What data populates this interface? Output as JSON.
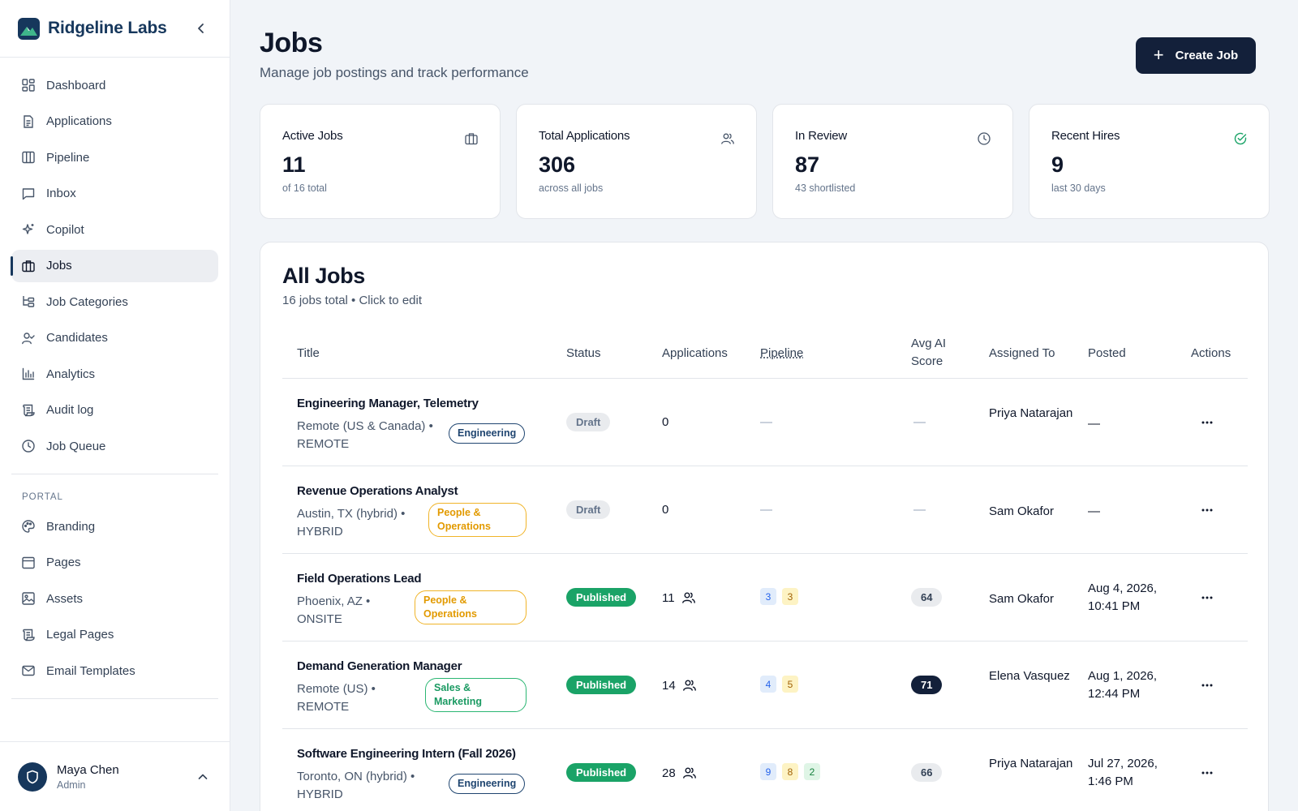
{
  "brand": {
    "name": "Ridgeline Labs"
  },
  "sidebar": {
    "items": [
      {
        "label": "Dashboard",
        "icon": "dashboard-icon"
      },
      {
        "label": "Applications",
        "icon": "document-icon"
      },
      {
        "label": "Pipeline",
        "icon": "columns-icon"
      },
      {
        "label": "Inbox",
        "icon": "message-icon"
      },
      {
        "label": "Copilot",
        "icon": "sparkle-icon"
      },
      {
        "label": "Jobs",
        "icon": "briefcase-icon",
        "active": true
      },
      {
        "label": "Job Categories",
        "icon": "hierarchy-icon"
      },
      {
        "label": "Candidates",
        "icon": "user-check-icon"
      },
      {
        "label": "Analytics",
        "icon": "bar-chart-icon"
      },
      {
        "label": "Audit log",
        "icon": "scroll-icon"
      },
      {
        "label": "Job Queue",
        "icon": "clock-icon"
      }
    ],
    "portal_label": "PORTAL",
    "portal_items": [
      {
        "label": "Branding",
        "icon": "palette-icon"
      },
      {
        "label": "Pages",
        "icon": "page-icon"
      },
      {
        "label": "Assets",
        "icon": "image-icon"
      },
      {
        "label": "Legal Pages",
        "icon": "scroll-icon"
      },
      {
        "label": "Email Templates",
        "icon": "mail-icon"
      }
    ]
  },
  "user": {
    "name": "Maya Chen",
    "role": "Admin"
  },
  "header": {
    "title": "Jobs",
    "subtitle": "Manage job postings and track performance",
    "create_label": "Create Job"
  },
  "stats": [
    {
      "label": "Active Jobs",
      "value": "11",
      "sub": "of 16 total",
      "icon": "briefcase-icon"
    },
    {
      "label": "Total Applications",
      "value": "306",
      "sub": "across all jobs",
      "icon": "users-icon"
    },
    {
      "label": "In Review",
      "value": "87",
      "sub": "43 shortlisted",
      "icon": "clock-icon"
    },
    {
      "label": "Recent Hires",
      "value": "9",
      "sub": "last 30 days",
      "icon": "check-circle-icon"
    }
  ],
  "jobs": {
    "title": "All Jobs",
    "subtitle": "16 jobs total • Click to edit",
    "columns": {
      "title": "Title",
      "status": "Status",
      "applications": "Applications",
      "pipeline": "Pipeline",
      "avg_ai_line1": "Avg AI",
      "avg_ai_line2": "Score",
      "assigned": "Assigned To",
      "posted": "Posted",
      "actions": "Actions"
    },
    "rows": [
      {
        "title": "Engineering Manager, Telemetry",
        "location": "Remote (US & Canada) •",
        "work_type": "REMOTE",
        "category": "Engineering",
        "status": "Draft",
        "applications": "0",
        "pipeline": "—",
        "score": "—",
        "assigned": "Priya Natarajan",
        "posted": "—"
      },
      {
        "title": "Revenue Operations Analyst",
        "location": "Austin, TX (hybrid) •",
        "work_type": "HYBRID",
        "category": "People & Operations",
        "status": "Draft",
        "applications": "0",
        "pipeline": "—",
        "score": "—",
        "assigned": "Sam Okafor",
        "posted": "—"
      },
      {
        "title": "Field Operations Lead",
        "location": "Phoenix, AZ •",
        "work_type": "ONSITE",
        "category": "People & Operations",
        "status": "Published",
        "applications": "11",
        "pipeline_counts": [
          "3",
          "3"
        ],
        "score": "64",
        "assigned": "Sam Okafor",
        "posted": "Aug 4, 2026, 10:41 PM"
      },
      {
        "title": "Demand Generation Manager",
        "location": "Remote (US) •",
        "work_type": "REMOTE",
        "category": "Sales & Marketing",
        "status": "Published",
        "applications": "14",
        "pipeline_counts": [
          "4",
          "5"
        ],
        "score": "71",
        "assigned": "Elena Vasquez",
        "posted": "Aug 1, 2026, 12:44 PM"
      },
      {
        "title": "Software Engineering Intern (Fall 2026)",
        "location": "Toronto, ON (hybrid) •",
        "work_type": "HYBRID",
        "category": "Engineering",
        "status": "Published",
        "applications": "28",
        "pipeline_counts": [
          "9",
          "8",
          "2"
        ],
        "score": "66",
        "assigned": "Priya Natarajan",
        "posted": "Jul 27, 2026, 1:46 PM"
      }
    ]
  },
  "colors": {
    "brand": "#16375c",
    "primary_button": "#13203a",
    "published": "#1aa367",
    "draft": "#e9ebee",
    "engineering_tag": "#1f4570",
    "people_tag": "#f0b429",
    "sales_tag": "#2bb673"
  }
}
